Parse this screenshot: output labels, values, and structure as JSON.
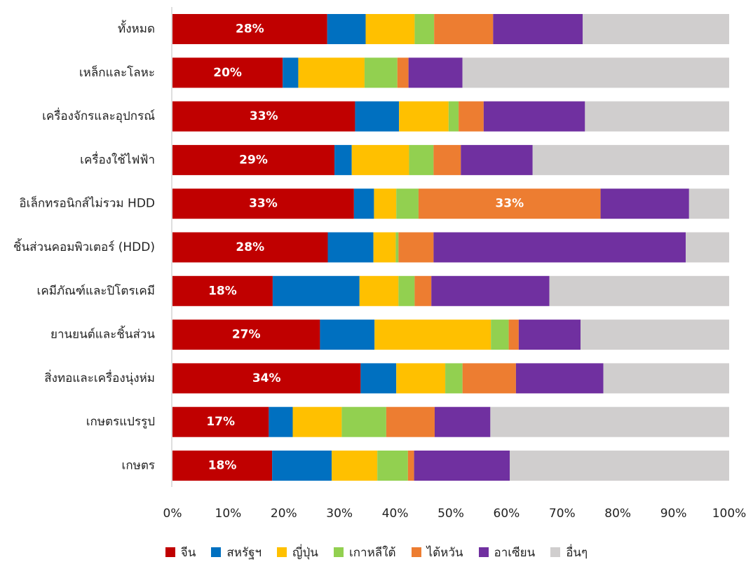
{
  "chart_data": {
    "type": "bar",
    "orientation": "horizontal",
    "stacked": "percent",
    "title": "",
    "xlabel": "",
    "ylabel": "",
    "xlim": [
      0,
      100
    ],
    "x_ticks": [
      "0%",
      "10%",
      "20%",
      "30%",
      "40%",
      "50%",
      "60%",
      "70%",
      "80%",
      "90%",
      "100%"
    ],
    "legend_position": "bottom",
    "categories": [
      "ทั้งหมด",
      "เหล็กและโลหะ",
      "เครื่องจักรและอุปกรณ์",
      "เครื่องใช้ไฟฟ้า",
      "อิเล็กทรอนิกส์ไม่รวม HDD",
      "ชิ้นส่วนคอมพิวเตอร์ (HDD)",
      "เคมีภัณฑ์และปิโตรเคมี",
      "ยานยนต์และชิ้นส่วน",
      "สิ่งทอและเครื่องนุ่งห่ม",
      "เกษตรแปรรูป",
      "เกษตร"
    ],
    "series": [
      {
        "name": "จีน",
        "color": "#C00000",
        "values": [
          27.8,
          19.8,
          32.8,
          29.1,
          32.6,
          27.9,
          18.0,
          26.5,
          33.8,
          17.3,
          17.9
        ]
      },
      {
        "name": "สหรัฐฯ",
        "color": "#0070C0",
        "values": [
          6.9,
          2.8,
          7.9,
          3.1,
          3.6,
          8.2,
          15.6,
          9.8,
          6.4,
          4.3,
          10.7
        ]
      },
      {
        "name": "ญี่ปุ่น",
        "color": "#FFC000",
        "values": [
          8.8,
          11.9,
          8.9,
          10.3,
          4.0,
          4.0,
          7.0,
          20.9,
          8.8,
          8.8,
          8.2
        ]
      },
      {
        "name": "เกาหลีใต้",
        "color": "#92D050",
        "values": [
          3.5,
          5.9,
          1.8,
          4.4,
          4.0,
          0.5,
          2.9,
          3.2,
          3.1,
          8.0,
          5.5
        ]
      },
      {
        "name": "ไต้หวัน",
        "color": "#ED7D31",
        "values": [
          10.6,
          2.0,
          4.5,
          4.9,
          32.7,
          6.3,
          3.0,
          1.8,
          9.6,
          8.7,
          1.1
        ]
      },
      {
        "name": "อาเซียน",
        "color": "#7030A0",
        "values": [
          16.1,
          9.7,
          18.2,
          12.9,
          15.9,
          45.3,
          21.2,
          11.1,
          15.7,
          10.0,
          17.2
        ]
      },
      {
        "name": "อื่นๆ",
        "color": "#D0CECE",
        "values": [
          26.3,
          47.9,
          25.9,
          35.3,
          7.2,
          7.8,
          32.3,
          26.7,
          22.6,
          42.9,
          39.4
        ]
      }
    ],
    "data_labels": [
      {
        "category_index": 0,
        "series_index": 0,
        "text": "28%"
      },
      {
        "category_index": 1,
        "series_index": 0,
        "text": "20%"
      },
      {
        "category_index": 2,
        "series_index": 0,
        "text": "33%"
      },
      {
        "category_index": 3,
        "series_index": 0,
        "text": "29%"
      },
      {
        "category_index": 4,
        "series_index": 0,
        "text": "33%"
      },
      {
        "category_index": 4,
        "series_index": 4,
        "text": "33%"
      },
      {
        "category_index": 5,
        "series_index": 0,
        "text": "28%"
      },
      {
        "category_index": 6,
        "series_index": 0,
        "text": "18%"
      },
      {
        "category_index": 7,
        "series_index": 0,
        "text": "27%"
      },
      {
        "category_index": 8,
        "series_index": 0,
        "text": "34%"
      },
      {
        "category_index": 9,
        "series_index": 0,
        "text": "17%"
      },
      {
        "category_index": 10,
        "series_index": 0,
        "text": "18%"
      }
    ]
  }
}
